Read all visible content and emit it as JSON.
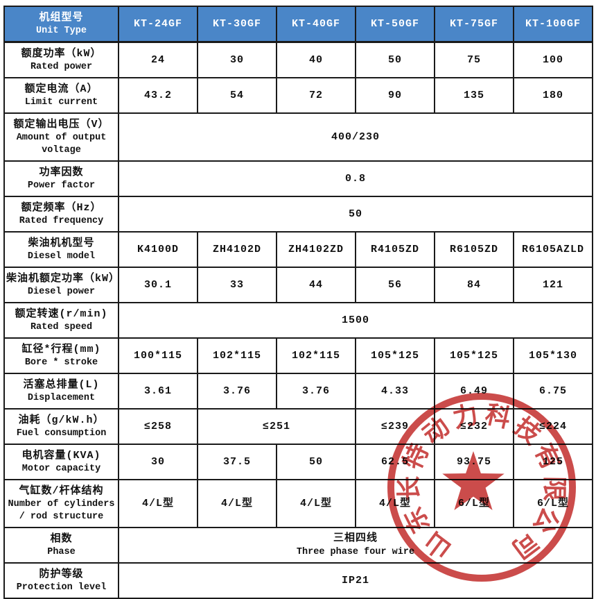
{
  "colors": {
    "header_bg": "#4a86c8",
    "header_text": "#ffffff",
    "border": "#1a1a1a",
    "stamp_red": "#c43130"
  },
  "header": {
    "label_zh": "机组型号",
    "label_en": "Unit Type",
    "models": [
      "KT-24GF",
      "KT-30GF",
      "KT-40GF",
      "KT-50GF",
      "KT-75GF",
      "KT-100GF"
    ]
  },
  "rows": [
    {
      "zh": "额度功率（kW）",
      "en": "Rated power",
      "cells": [
        {
          "v": "24"
        },
        {
          "v": "30"
        },
        {
          "v": "40"
        },
        {
          "v": "50"
        },
        {
          "v": "75"
        },
        {
          "v": "100"
        }
      ]
    },
    {
      "zh": "额定电流（A）",
      "en": "Limit current",
      "cells": [
        {
          "v": "43.2"
        },
        {
          "v": "54"
        },
        {
          "v": "72"
        },
        {
          "v": "90"
        },
        {
          "v": "135"
        },
        {
          "v": "180"
        }
      ]
    },
    {
      "zh": "额定输出电压（V）",
      "en": "Amount of output voltage",
      "cells": [
        {
          "v": "400/230",
          "span": 6
        }
      ]
    },
    {
      "zh": "功率因数",
      "en": "Power factor",
      "cells": [
        {
          "v": "0.8",
          "span": 6
        }
      ]
    },
    {
      "zh": "额定频率（Hz）",
      "en": "Rated frequency",
      "cells": [
        {
          "v": "50",
          "span": 6
        }
      ]
    },
    {
      "zh": "柴油机机型号",
      "en": "Diesel model",
      "cells": [
        {
          "v": "K4100D"
        },
        {
          "v": "ZH4102D"
        },
        {
          "v": "ZH4102ZD"
        },
        {
          "v": "R4105ZD"
        },
        {
          "v": "R6105ZD"
        },
        {
          "v": "R6105AZLD"
        }
      ]
    },
    {
      "zh": "柴油机额定功率（kW）",
      "en": "Diesel power",
      "cells": [
        {
          "v": "30.1"
        },
        {
          "v": "33"
        },
        {
          "v": "44"
        },
        {
          "v": "56"
        },
        {
          "v": "84"
        },
        {
          "v": "121"
        }
      ]
    },
    {
      "zh": "额定转速(r/min)",
      "en": "Rated speed",
      "cells": [
        {
          "v": "1500",
          "span": 6
        }
      ]
    },
    {
      "zh": "缸径*行程(mm)",
      "en": "Bore * stroke",
      "cells": [
        {
          "v": "100*115"
        },
        {
          "v": "102*115"
        },
        {
          "v": "102*115"
        },
        {
          "v": "105*125"
        },
        {
          "v": "105*125"
        },
        {
          "v": "105*130"
        }
      ]
    },
    {
      "zh": "活塞总排量(L)",
      "en": "Displacement",
      "cells": [
        {
          "v": "3.61"
        },
        {
          "v": "3.76"
        },
        {
          "v": "3.76"
        },
        {
          "v": "4.33"
        },
        {
          "v": "6.49"
        },
        {
          "v": "6.75"
        }
      ]
    },
    {
      "zh": "油耗（g/kW.h）",
      "en": "Fuel consumption",
      "cells": [
        {
          "v": "≤258"
        },
        {
          "v": "≤251",
          "span": 2
        },
        {
          "v": "≤239"
        },
        {
          "v": "≤232"
        },
        {
          "v": "≤224"
        }
      ]
    },
    {
      "zh": "电机容量(KVA)",
      "en": "Motor capacity",
      "cells": [
        {
          "v": "30"
        },
        {
          "v": "37.5"
        },
        {
          "v": "50"
        },
        {
          "v": "62.5"
        },
        {
          "v": "93.75"
        },
        {
          "v": "125"
        }
      ]
    },
    {
      "zh": "气缸数/杆体结构",
      "en": "Number of cylinders / rod structure",
      "cells": [
        {
          "v": "4/L型"
        },
        {
          "v": "4/L型"
        },
        {
          "v": "4/L型"
        },
        {
          "v": "4/L型"
        },
        {
          "v": "6/L型"
        },
        {
          "v": "6/L型"
        }
      ]
    },
    {
      "zh": "相数",
      "en": "Phase",
      "cells": [
        {
          "v": "三相四线",
          "v2": "Three phase four wire",
          "span": 6
        }
      ]
    },
    {
      "zh": "防护等级",
      "en": "Protection level",
      "cells": [
        {
          "v": "IP21",
          "span": 6
        }
      ]
    }
  ],
  "stamp": {
    "company": "山东长特动力科技有限公司",
    "star": "star-icon"
  }
}
